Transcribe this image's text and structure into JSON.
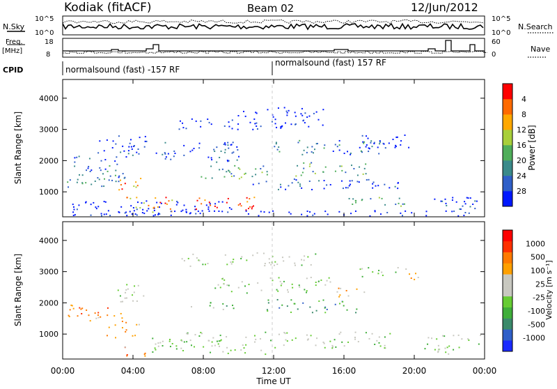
{
  "header": {
    "station": "Kodiak (fitACF)",
    "beam": "Beam 02",
    "date": "12/Jun/2012"
  },
  "top_panels": {
    "nsky_label": "N.Sky",
    "nsky_ticks": [
      "10^5",
      "10^0"
    ],
    "nsearch_label": "N.Search",
    "nsearch_ticks": [
      "10^5",
      "10^0"
    ],
    "freq_label_1": "Freq.",
    "freq_label_2": "[MHz]",
    "freq_ticks": [
      "18",
      "8"
    ],
    "nave_label": "Nave",
    "nave_ticks": [
      "60",
      "0"
    ],
    "cpid_label": "CPID",
    "cpid_segments": [
      {
        "label": "normalsound (fast) -157 RF",
        "start": 0
      },
      {
        "label": "normalsound (fast) 157 RF",
        "start": 12
      }
    ]
  },
  "chart_data": [
    {
      "type": "heatmap",
      "name": "power-panel",
      "ylabel": "Slant Range [km]",
      "yticks": [
        1000,
        2000,
        3000,
        4000
      ],
      "ylim": [
        200,
        4600
      ],
      "xlim": [
        0,
        24
      ],
      "colorbar": {
        "label": "Power [dB]",
        "ticks": [
          "4",
          "8",
          "12",
          "16",
          "20",
          "24",
          "28"
        ],
        "colors": [
          "#0018ff",
          "#2f5fc8",
          "#3a8a8a",
          "#4fae5a",
          "#a8cf3a",
          "#ffa800",
          "#ff6a00",
          "#ff0000"
        ]
      }
    },
    {
      "type": "heatmap",
      "name": "velocity-panel",
      "ylabel": "Slant Range [km]",
      "yticks": [
        1000,
        2000,
        3000,
        4000
      ],
      "ylim": [
        200,
        4600
      ],
      "xlim": [
        0,
        24
      ],
      "colorbar": {
        "label": "Velocity [m s⁻¹]",
        "ticks": [
          "1000",
          "500",
          "100",
          "25",
          "-25",
          "-100",
          "-500",
          "-1000"
        ],
        "colors": [
          "#1a2aff",
          "#2f5fc8",
          "#3a8a6a",
          "#3fae3a",
          "#66cc33",
          "#c8c8c0",
          "#c8c8c0",
          "#ffa000",
          "#ff7a00",
          "#ff3000",
          "#ff0000"
        ]
      }
    }
  ],
  "xaxis": {
    "ticks": [
      "00:00",
      "04:00",
      "08:00",
      "12:00",
      "16:00",
      "20:00",
      "00:00"
    ],
    "label": "Time UT"
  }
}
